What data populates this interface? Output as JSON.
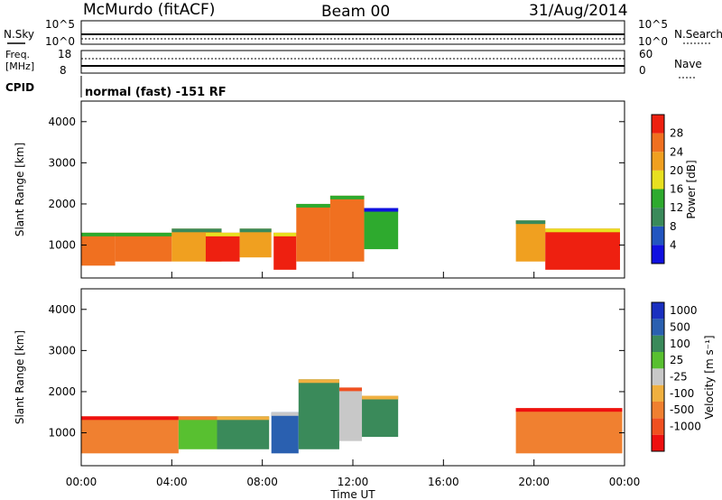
{
  "header": {
    "station": "McMurdo (fitACF)",
    "beam": "Beam 00",
    "date": "31/Aug/2014"
  },
  "top_panels": {
    "nsky_label": "N.Sky",
    "nsearch_label": "N.Search",
    "freq_label": "Freq.",
    "freq_unit": "[MHz]",
    "nave_label": "Nave",
    "cpid_label": "CPID",
    "cpid_text": "normal (fast) -151 RF",
    "noise_axis_top": "10^5",
    "noise_axis_bottom": "10^0",
    "freq_axis_top": "18",
    "freq_axis_bottom": "8",
    "nave_axis_top": "60",
    "nave_axis_bottom": "0"
  },
  "x_axis": {
    "label": "Time UT",
    "ticks": [
      "00:00",
      "04:00",
      "08:00",
      "12:00",
      "16:00",
      "20:00",
      "00:00"
    ]
  },
  "colors": {
    "power": [
      "#1010e0",
      "#2255c0",
      "#3a8a5a",
      "#2eaa2e",
      "#e8e020",
      "#f0a020",
      "#f07020",
      "#ee2010"
    ],
    "velocity": [
      "#ee1010",
      "#f05020",
      "#f08030",
      "#f0b040",
      "#c8c8c8",
      "#58c030",
      "#3a8a5a",
      "#2a60b0",
      "#1a30c0"
    ]
  },
  "chart_data": [
    {
      "type": "heatmap",
      "title": "",
      "xlabel": "",
      "ylabel": "Slant Range [km]",
      "ylim": [
        200,
        4500
      ],
      "yticks": [
        "1000",
        "2000",
        "3000",
        "4000"
      ],
      "xlim": [
        0,
        24
      ],
      "colorbar_label": "Power [dB]",
      "colorbar_ticks": [
        "4",
        "8",
        "12",
        "16",
        "20",
        "24",
        "28"
      ],
      "blobs": [
        {
          "t0": 0.0,
          "t1": 1.5,
          "r0": 500,
          "r1": 1300,
          "level": 6
        },
        {
          "t0": 1.5,
          "t1": 4.0,
          "r0": 600,
          "r1": 1300,
          "level": 6
        },
        {
          "t0": 4.0,
          "t1": 6.2,
          "r0": 600,
          "r1": 1400,
          "level": 5
        },
        {
          "t0": 5.5,
          "t1": 7.0,
          "r0": 600,
          "r1": 1300,
          "level": 7
        },
        {
          "t0": 7.0,
          "t1": 8.4,
          "r0": 700,
          "r1": 1400,
          "level": 5
        },
        {
          "t0": 8.5,
          "t1": 9.5,
          "r0": 400,
          "r1": 1300,
          "level": 7
        },
        {
          "t0": 9.5,
          "t1": 11.0,
          "r0": 600,
          "r1": 2000,
          "level": 6
        },
        {
          "t0": 11.0,
          "t1": 12.5,
          "r0": 600,
          "r1": 2200,
          "level": 6
        },
        {
          "t0": 12.5,
          "t1": 14.0,
          "r0": 900,
          "r1": 1900,
          "level": 3
        },
        {
          "t0": 19.2,
          "t1": 20.5,
          "r0": 600,
          "r1": 1600,
          "level": 5
        },
        {
          "t0": 20.5,
          "t1": 23.8,
          "r0": 400,
          "r1": 1400,
          "level": 7
        }
      ]
    },
    {
      "type": "heatmap",
      "title": "",
      "xlabel": "Time UT",
      "ylabel": "Slant Range [km]",
      "ylim": [
        200,
        4500
      ],
      "yticks": [
        "1000",
        "2000",
        "3000",
        "4000"
      ],
      "xlim": [
        0,
        24
      ],
      "colorbar_label": "Velocity [m s⁻¹]",
      "colorbar_ticks": [
        "1000",
        "500",
        "100",
        "25",
        "-25",
        "-100",
        "-500",
        "-1000"
      ],
      "blobs": [
        {
          "t0": 0.0,
          "t1": 4.3,
          "r0": 500,
          "r1": 1400,
          "level": 2
        },
        {
          "t0": 4.3,
          "t1": 6.0,
          "r0": 600,
          "r1": 1400,
          "level": 5
        },
        {
          "t0": 6.0,
          "t1": 8.3,
          "r0": 600,
          "r1": 1400,
          "level": 6
        },
        {
          "t0": 8.4,
          "t1": 9.6,
          "r0": 500,
          "r1": 1500,
          "level": 7
        },
        {
          "t0": 9.6,
          "t1": 11.4,
          "r0": 600,
          "r1": 2300,
          "level": 6
        },
        {
          "t0": 11.4,
          "t1": 12.4,
          "r0": 800,
          "r1": 2100,
          "level": 4
        },
        {
          "t0": 12.4,
          "t1": 14.0,
          "r0": 900,
          "r1": 1900,
          "level": 6
        },
        {
          "t0": 19.2,
          "t1": 23.9,
          "r0": 500,
          "r1": 1600,
          "level": 2
        }
      ]
    }
  ]
}
